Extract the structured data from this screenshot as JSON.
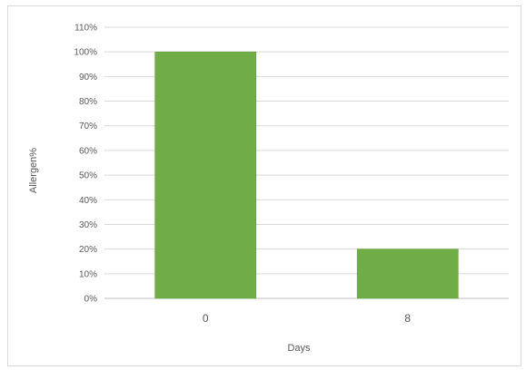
{
  "chart_data": {
    "type": "bar",
    "categories": [
      "0",
      "8"
    ],
    "values": [
      100,
      20
    ],
    "xlabel": "Days",
    "ylabel": "Allergen%",
    "ylim": [
      0,
      110
    ],
    "ytick_step": 10,
    "ytick_suffix": "%",
    "ytick_labels": [
      "0%",
      "10%",
      "20%",
      "30%",
      "40%",
      "50%",
      "60%",
      "70%",
      "80%",
      "90%",
      "100%",
      "110%"
    ],
    "grid": true,
    "legend": "none",
    "colors": {
      "bar": "#70ad47",
      "bar_edge": "#5e9a3a",
      "grid": "#d9d9d9",
      "axis": "#bfbfbf",
      "text": "#595959"
    }
  }
}
